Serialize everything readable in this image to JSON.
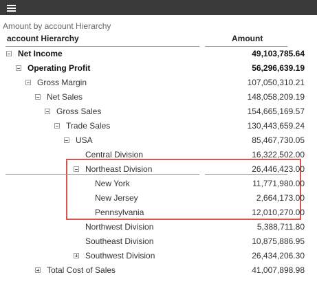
{
  "subtitle": "Amount by account Hierarchy",
  "table": {
    "headers": [
      "account Hierarchy",
      "Amount"
    ],
    "rows": [
      {
        "label": "Net Income",
        "amount": "49,103,785.64",
        "level": 0,
        "toggle": "minus",
        "bold": true
      },
      {
        "label": "Operating Profit",
        "amount": "56,296,639.19",
        "level": 1,
        "toggle": "minus",
        "bold": true
      },
      {
        "label": "Gross Margin",
        "amount": "107,050,310.21",
        "level": 2,
        "toggle": "minus"
      },
      {
        "label": "Net Sales",
        "amount": "148,058,209.19",
        "level": 3,
        "toggle": "minus"
      },
      {
        "label": "Gross Sales",
        "amount": "154,665,169.57",
        "level": 4,
        "toggle": "minus"
      },
      {
        "label": "Trade Sales",
        "amount": "130,443,659.24",
        "level": 5,
        "toggle": "minus"
      },
      {
        "label": "USA",
        "amount": "85,467,730.05",
        "level": 6,
        "toggle": "minus"
      },
      {
        "label": "Central Division",
        "amount": "16,322,502.00",
        "level": 7
      },
      {
        "label": "Northeast Division",
        "amount": "26,446,423.00",
        "level": 7,
        "toggle": "minus",
        "underline": true
      },
      {
        "label": "New York",
        "amount": "11,771,980.00",
        "level": 8
      },
      {
        "label": "New Jersey",
        "amount": "2,664,173.00",
        "level": 8
      },
      {
        "label": "Pennsylvania",
        "amount": "12,010,270.00",
        "level": 8
      },
      {
        "label": "Northwest Division",
        "amount": "5,388,711.80",
        "level": 7
      },
      {
        "label": "Southeast Division",
        "amount": "10,875,886.95",
        "level": 7
      },
      {
        "label": "Southwest Division",
        "amount": "26,434,206.30",
        "level": 7,
        "toggle": "plus"
      },
      {
        "label": "Total Cost of Sales",
        "amount": "41,007,898.98",
        "level": 3,
        "toggle": "plus"
      }
    ]
  }
}
